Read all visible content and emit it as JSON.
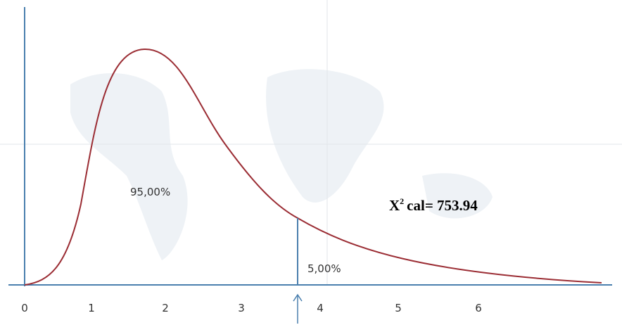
{
  "axis": {
    "ticks": [
      "0",
      "1",
      "2",
      "3",
      "4",
      "5",
      "6"
    ]
  },
  "regions": {
    "acceptance": "95,00%",
    "rejection": "5,00%"
  },
  "statistic": {
    "symbol": "X",
    "exponent": "2",
    "text": "cal= 753.94"
  }
}
